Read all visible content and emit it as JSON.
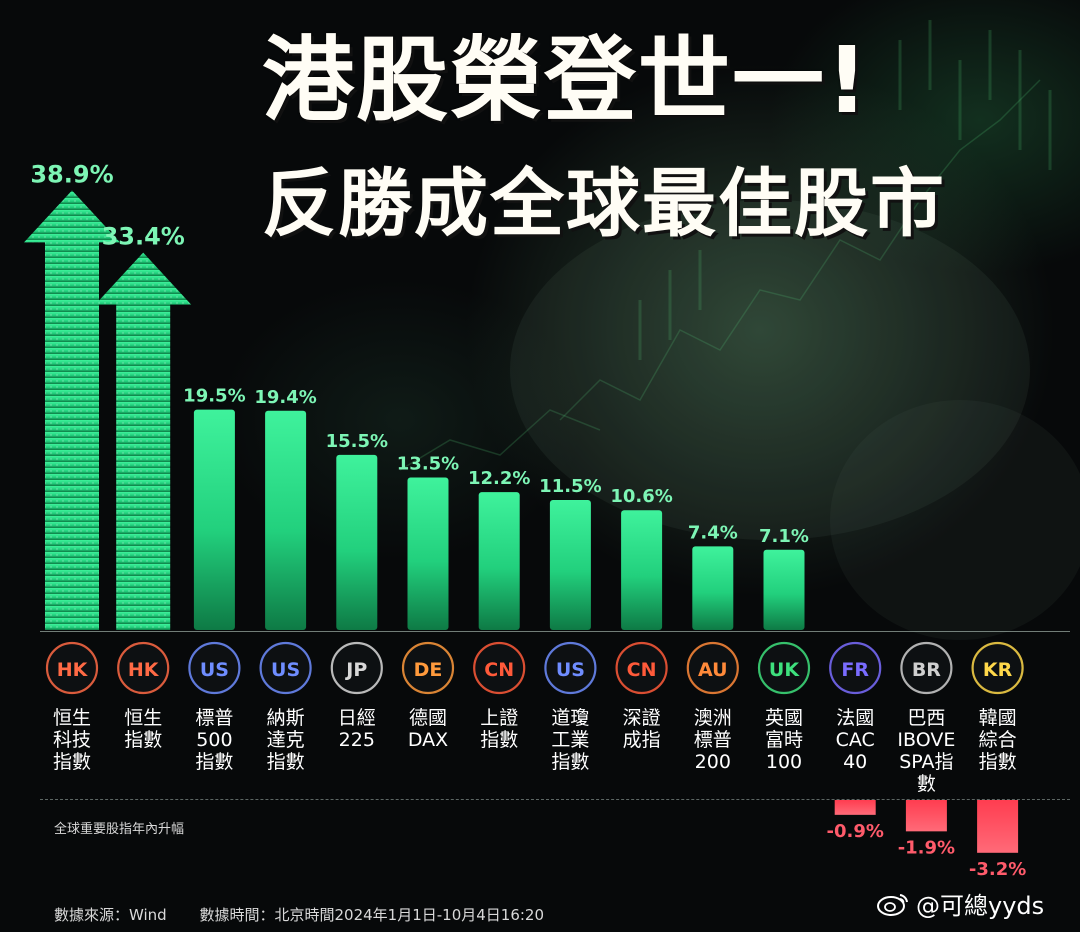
{
  "title_line1": "港股榮登世一!",
  "title_line2": "反勝成全球最佳股市",
  "caption": "全球重要股指年內升幅",
  "footer": {
    "source": "數據來源：Wind",
    "time": "數據時間：北京時間2024年1月1日-10月4日16:20"
  },
  "watermark": "@可總yyds",
  "colors": {
    "positive": "#2ee68f",
    "positive_label": "#7df5b5",
    "negative": "#ff4d5e",
    "negative_label": "#ff5b6b",
    "title": "#fffdf5",
    "background": "#07090a"
  },
  "chart_data": {
    "type": "bar",
    "unit": "%",
    "categories": [
      "恒生科技指數",
      "恒生指數",
      "標普500指數",
      "納斯達克指數",
      "日經225",
      "德國DAX",
      "上證指數",
      "道瓊工業指數",
      "深證成指",
      "澳洲標普200",
      "英國富時100",
      "法國CAC40",
      "巴西IBOVESPA指數",
      "韓國綜合指數"
    ],
    "category_lines": [
      [
        "恒生",
        "科技",
        "指數"
      ],
      [
        "恒生",
        "指數"
      ],
      [
        "標普",
        "500",
        "指數"
      ],
      [
        "納斯",
        "達克",
        "指數"
      ],
      [
        "日經",
        "225"
      ],
      [
        "德國",
        "DAX"
      ],
      [
        "上證",
        "指數"
      ],
      [
        "道瓊",
        "工業",
        "指數"
      ],
      [
        "深證",
        "成指"
      ],
      [
        "澳洲",
        "標普",
        "200"
      ],
      [
        "英國",
        "富時",
        "100"
      ],
      [
        "法國",
        "CAC",
        "40"
      ],
      [
        "巴西",
        "IBOVE",
        "SPA指",
        "數"
      ],
      [
        "韓國",
        "綜合",
        "指數"
      ]
    ],
    "badges": [
      "HK",
      "HK",
      "US",
      "US",
      "JP",
      "DE",
      "CN",
      "US",
      "CN",
      "AU",
      "UK",
      "FR",
      "BR",
      "KR"
    ],
    "badge_colors": [
      "#ff6a45",
      "#ff6a45",
      "#6f8dff",
      "#6f8dff",
      "#d8d8d8",
      "#ff9a3c",
      "#ff5a3a",
      "#6f8dff",
      "#ff5a3a",
      "#ff8a3a",
      "#3ee07d",
      "#7a6cff",
      "#cfcfcf",
      "#ffd84a"
    ],
    "values": [
      38.9,
      33.4,
      19.5,
      19.4,
      15.5,
      13.5,
      12.2,
      11.5,
      10.6,
      7.4,
      7.1,
      -0.9,
      -1.9,
      -3.2
    ],
    "data_labels": [
      "38.9%",
      "33.4%",
      "19.5%",
      "19.4%",
      "15.5%",
      "13.5%",
      "12.2%",
      "11.5%",
      "10.6%",
      "7.4%",
      "7.1%",
      "-0.9%",
      "-1.9%",
      "-3.2%"
    ],
    "arrow_bars": [
      0,
      1
    ]
  }
}
